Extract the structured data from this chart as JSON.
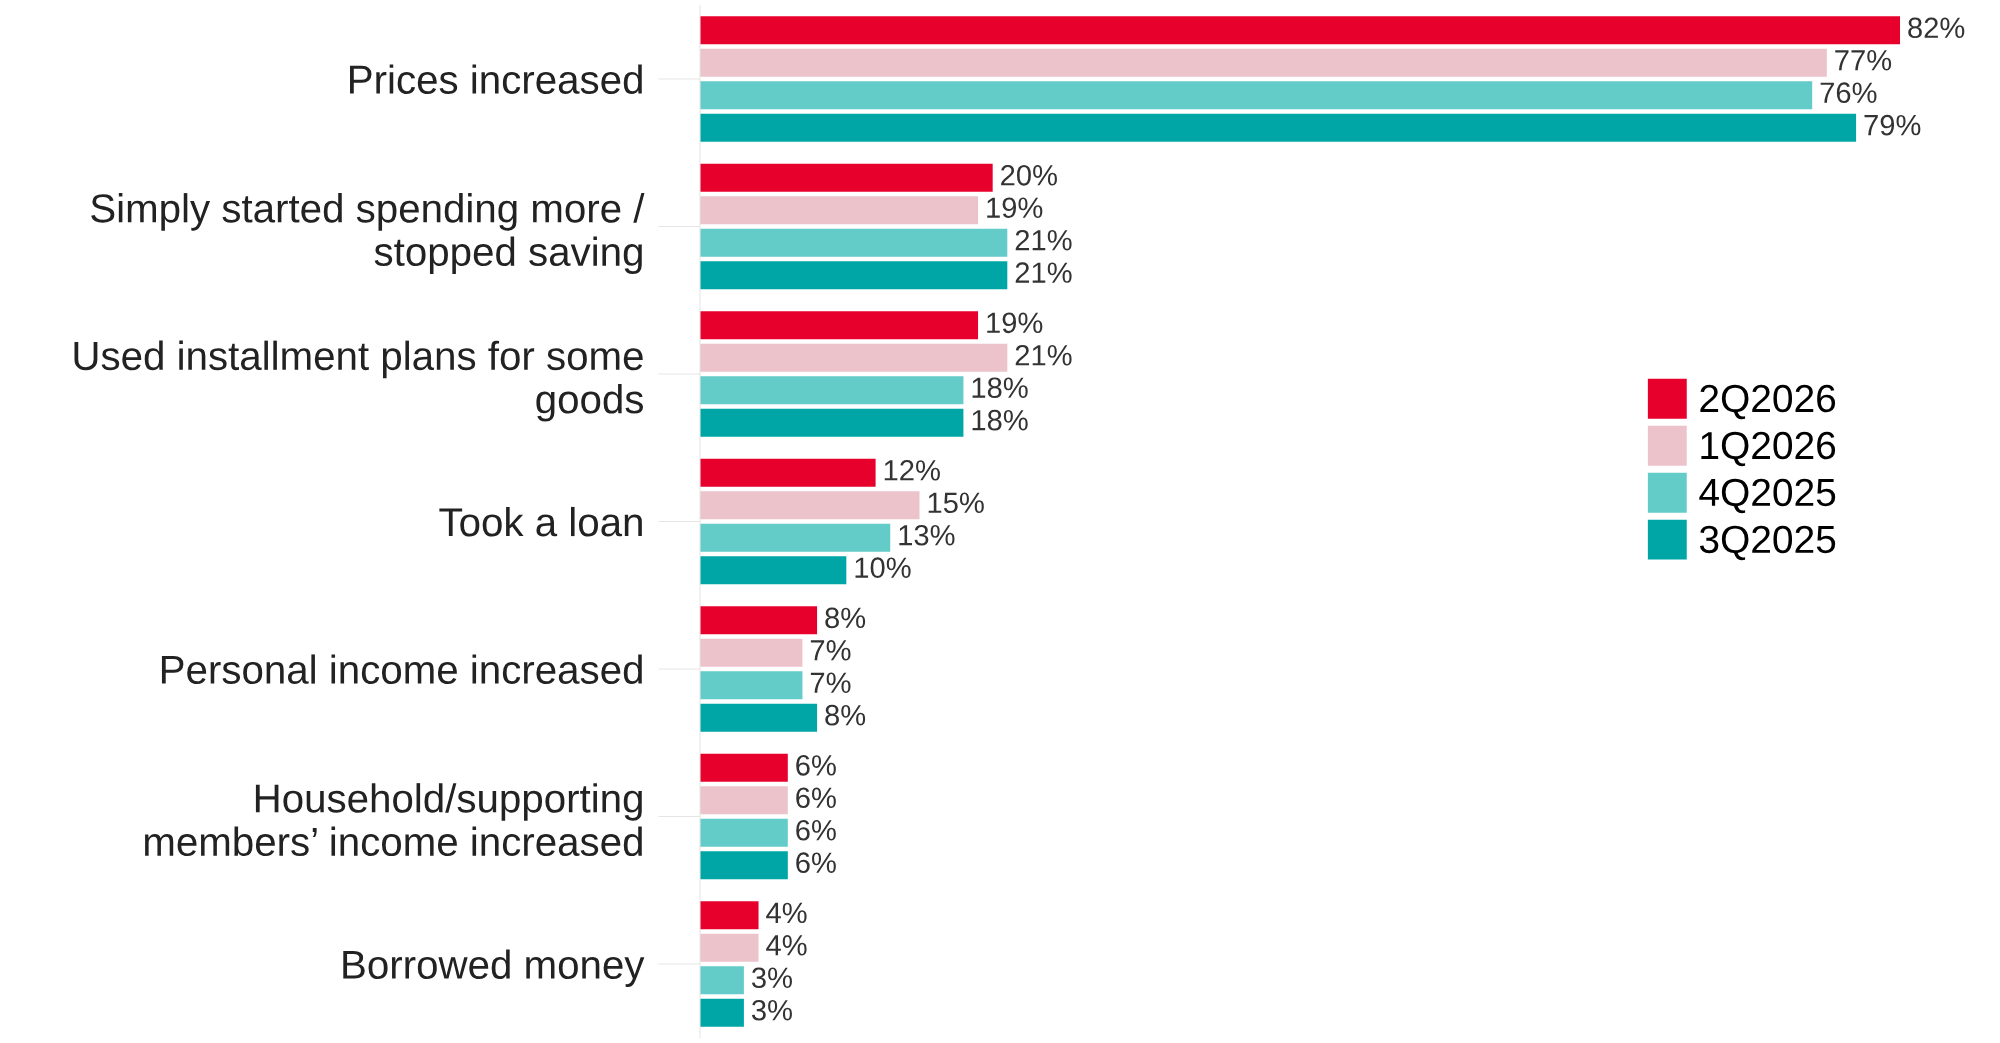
{
  "chart_data": {
    "type": "bar",
    "orientation": "horizontal",
    "categories": [
      "Prices increased",
      "Simply started spending more /\nstopped saving",
      "Used installment plans for some\ngoods",
      "Took a loan",
      "Personal income increased",
      "Household/supporting\nmembers’ income increased",
      "Borrowed money"
    ],
    "series": [
      {
        "name": "2Q2026",
        "color": "#e8002d",
        "values": [
          82,
          20,
          19,
          12,
          8,
          6,
          4
        ],
        "value_labels": [
          "82%",
          "20%",
          "19%",
          "12%",
          "8%",
          "6%",
          "4%"
        ]
      },
      {
        "name": "1Q2026",
        "color": "#ecc3cb",
        "values": [
          77,
          19,
          21,
          15,
          7,
          6,
          4
        ],
        "value_labels": [
          "77%",
          "19%",
          "21%",
          "15%",
          "7%",
          "6%",
          "4%"
        ]
      },
      {
        "name": "4Q2025",
        "color": "#63cbc8",
        "values": [
          76,
          21,
          18,
          13,
          7,
          6,
          3
        ],
        "value_labels": [
          "76%",
          "21%",
          "18%",
          "13%",
          "7%",
          "6%",
          "3%"
        ]
      },
      {
        "name": "3Q2025",
        "color": "#00a6a6",
        "values": [
          79,
          21,
          18,
          10,
          8,
          6,
          3
        ],
        "value_labels": [
          "79%",
          "21%",
          "18%",
          "10%",
          "8%",
          "6%",
          "3%"
        ]
      }
    ],
    "legend": "right",
    "grid": false,
    "tick_labels": "y"
  }
}
